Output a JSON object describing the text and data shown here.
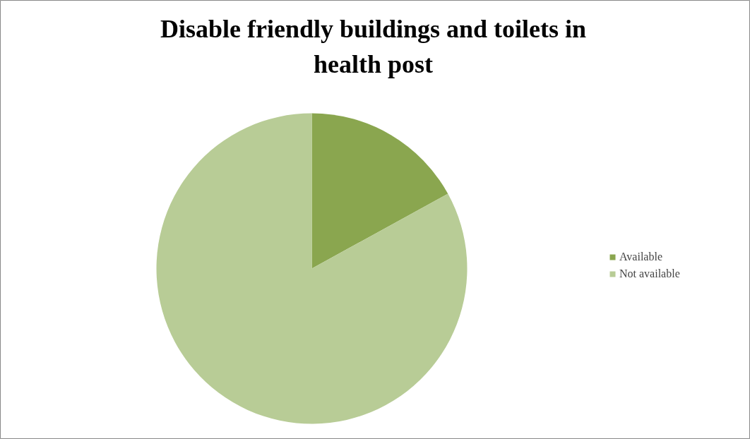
{
  "chart_data": {
    "type": "pie",
    "title": "Disable friendly buildings and toilets in health post",
    "categories": [
      "Available",
      "Not available"
    ],
    "values": [
      17,
      83
    ],
    "colors": [
      "#8aa64f",
      "#b8cc96"
    ],
    "legend": "right"
  }
}
